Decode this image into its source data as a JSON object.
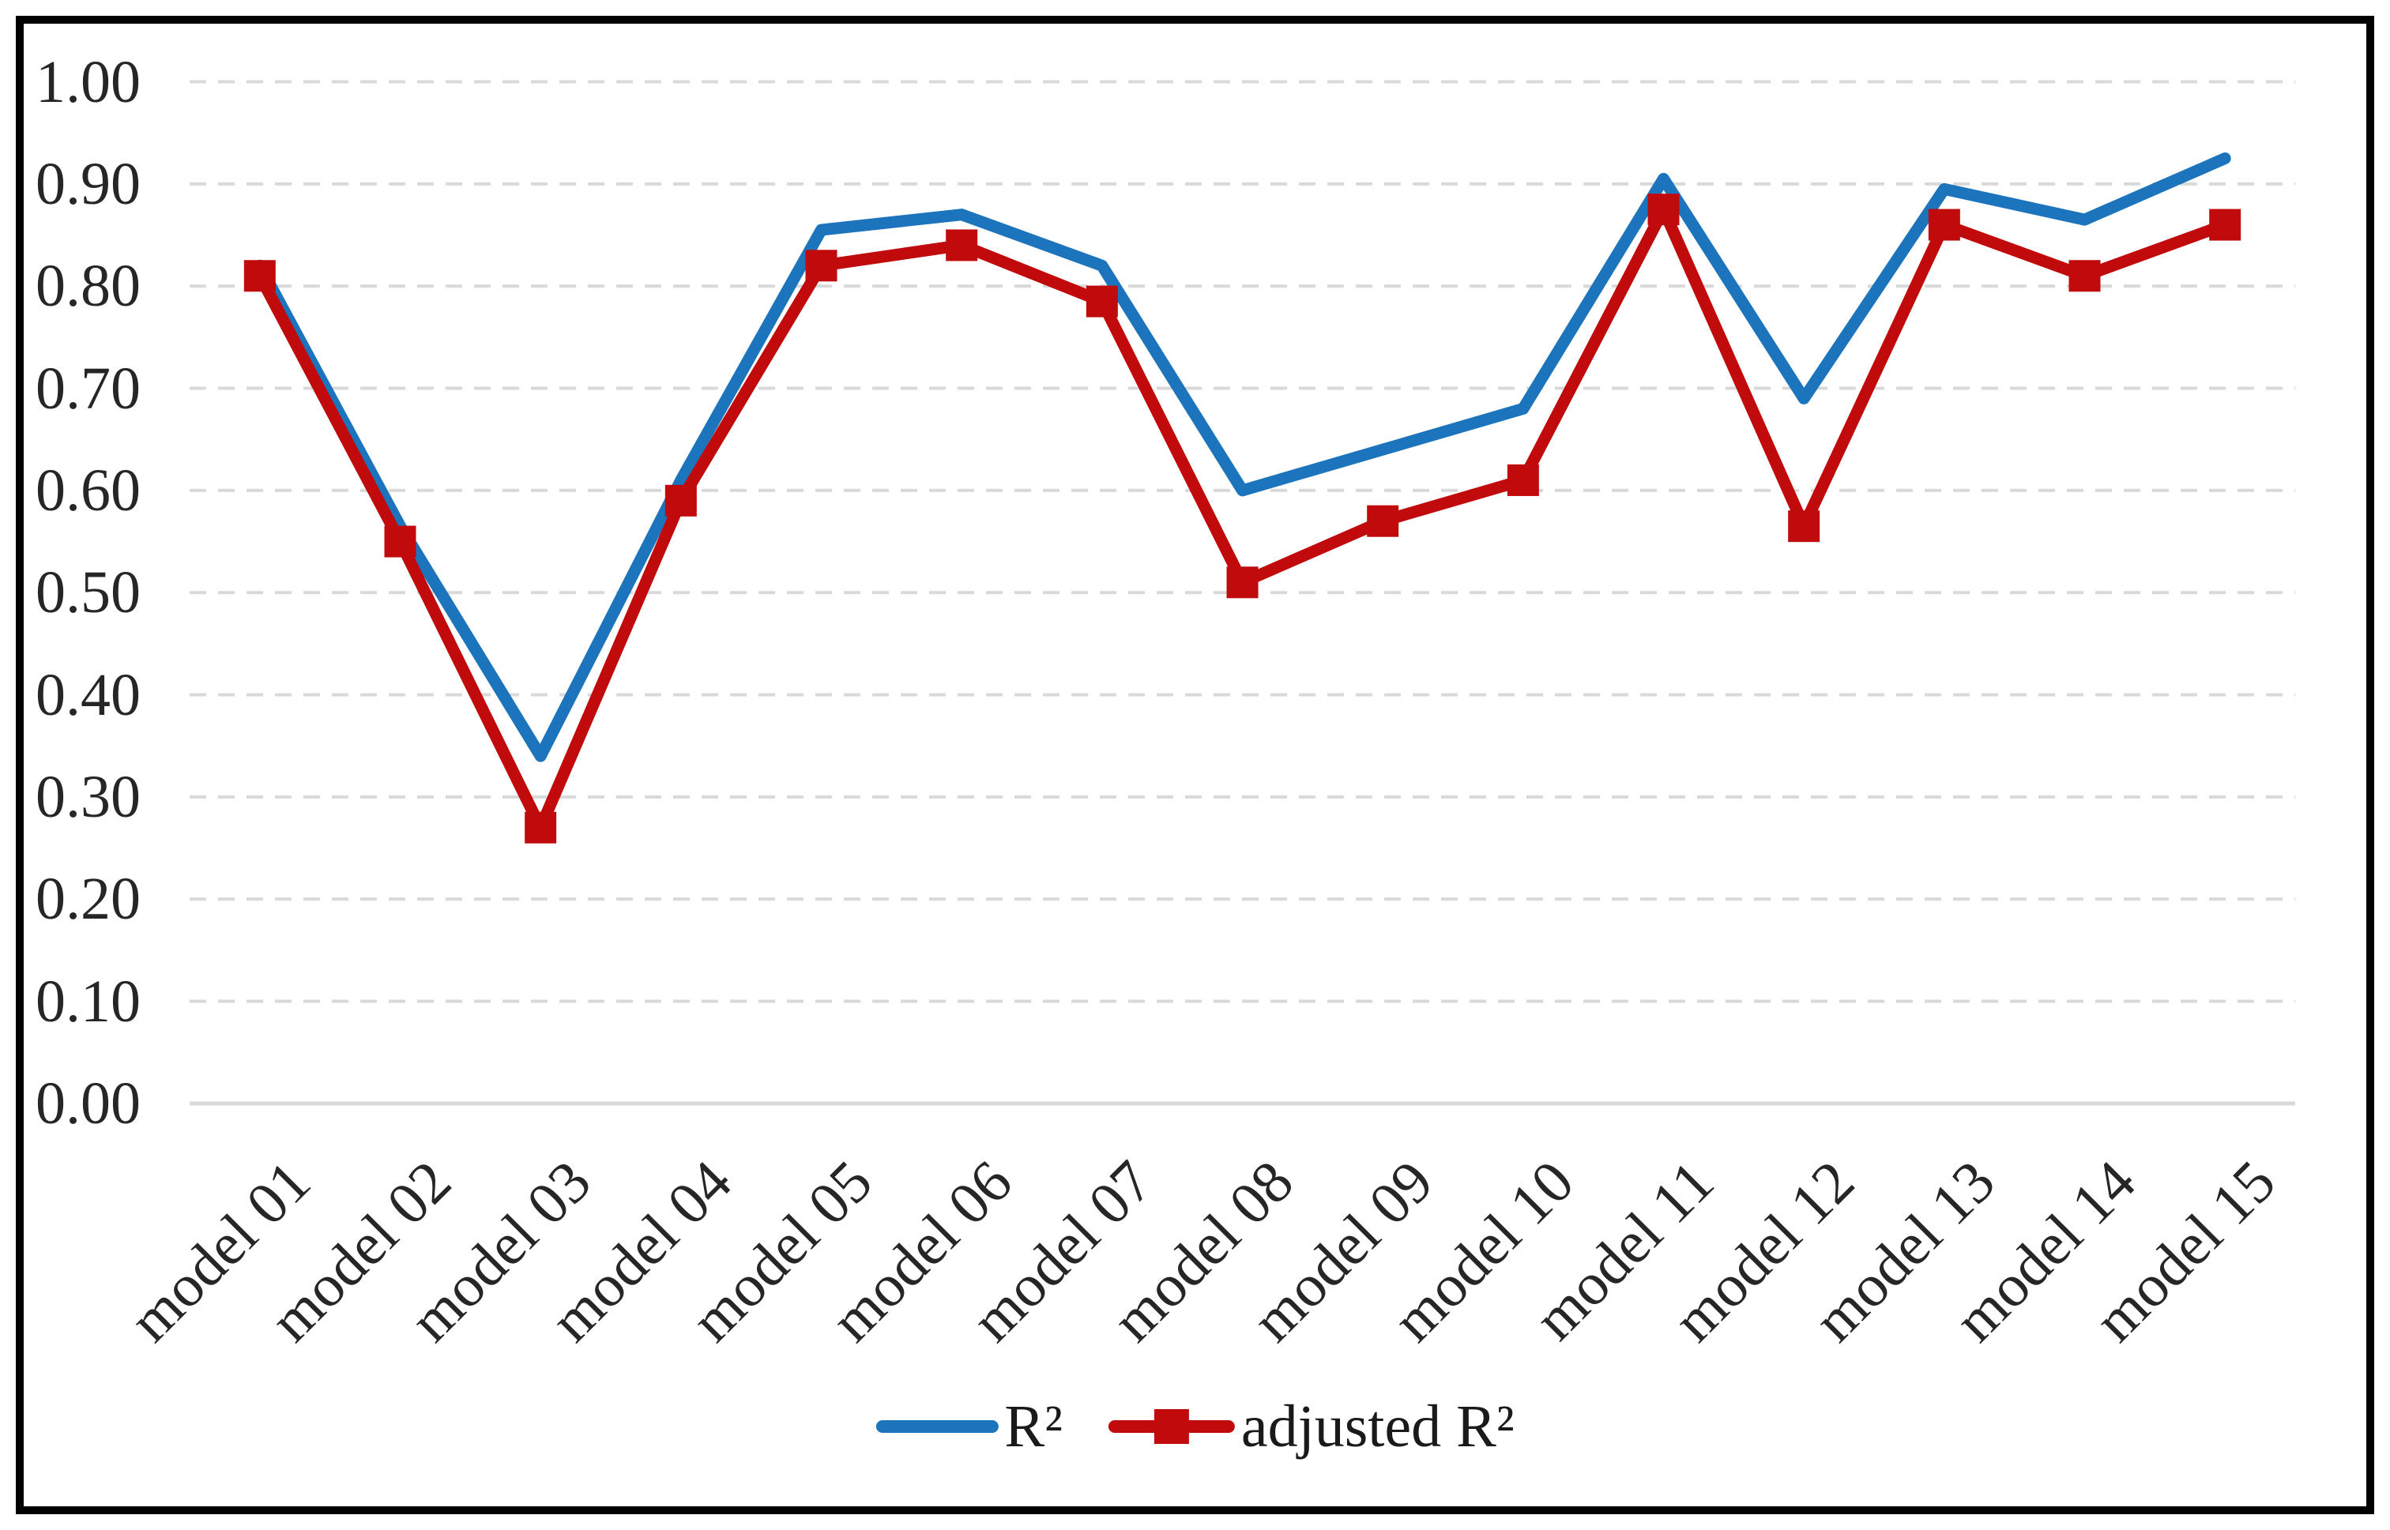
{
  "chart_data": {
    "type": "line",
    "title": "",
    "categories": [
      "model 01",
      "model 02",
      "model 03",
      "model 04",
      "model 05",
      "model 06",
      "model 07",
      "model 08",
      "model 09",
      "model 10",
      "model 11",
      "model 12",
      "model 13",
      "model 14",
      "model 15"
    ],
    "series": [
      {
        "name": "R²",
        "color": "#1b74bc",
        "marker": "none",
        "values": [
          0.82,
          0.565,
          0.34,
          0.61,
          0.855,
          0.87,
          0.82,
          0.6,
          0.64,
          0.68,
          0.905,
          0.69,
          0.895,
          0.865,
          0.925
        ]
      },
      {
        "name": "adjusted R²",
        "color": "#c00a0c",
        "marker": "square",
        "values": [
          0.81,
          0.55,
          0.27,
          0.59,
          0.82,
          0.84,
          0.785,
          0.51,
          0.57,
          0.61,
          0.875,
          0.565,
          0.86,
          0.81,
          0.86
        ]
      }
    ],
    "y_axis": {
      "min": 0,
      "max": 1,
      "step": 0.1,
      "tick_labels": [
        "0.00",
        "0.10",
        "0.20",
        "0.30",
        "0.40",
        "0.50",
        "0.60",
        "0.70",
        "0.80",
        "0.90",
        "1.00"
      ]
    },
    "x_axis": {
      "label_rotation_deg": 45
    },
    "grid": {
      "horizontal": true,
      "style": "dashed"
    },
    "legend_position": "bottom"
  },
  "colors": {
    "r2_line": "#1b74bc",
    "adjusted_r2_line": "#c00a0c",
    "gridline": "#d9d9d9",
    "axis_line": "#d9d9d9",
    "tick_text": "#262626",
    "frame_border": "#000000",
    "background": "#ffffff"
  }
}
